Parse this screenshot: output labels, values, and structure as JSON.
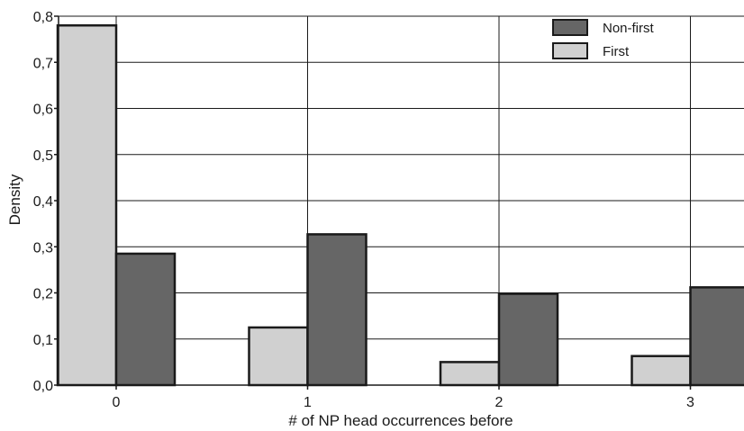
{
  "chart_data": {
    "type": "bar",
    "title": "",
    "xlabel": "# of NP head occurrences before",
    "ylabel": "Density",
    "categories": [
      "0",
      "1",
      "2",
      "3"
    ],
    "series": [
      {
        "name": "First",
        "color": "#d0d0d0",
        "values": [
          0.78,
          0.125,
          0.05,
          0.063
        ]
      },
      {
        "name": "Non-first",
        "color": "#666666",
        "values": [
          0.285,
          0.327,
          0.198,
          0.212
        ]
      }
    ],
    "ylim": [
      0,
      0.8
    ],
    "yticks": [
      "0,0",
      "0,1",
      "0,2",
      "0,3",
      "0,4",
      "0,5",
      "0,6",
      "0,7",
      "0,8"
    ],
    "grid": true,
    "legend": {
      "placement": "top-right",
      "order": [
        "Non-first",
        "First"
      ]
    }
  }
}
